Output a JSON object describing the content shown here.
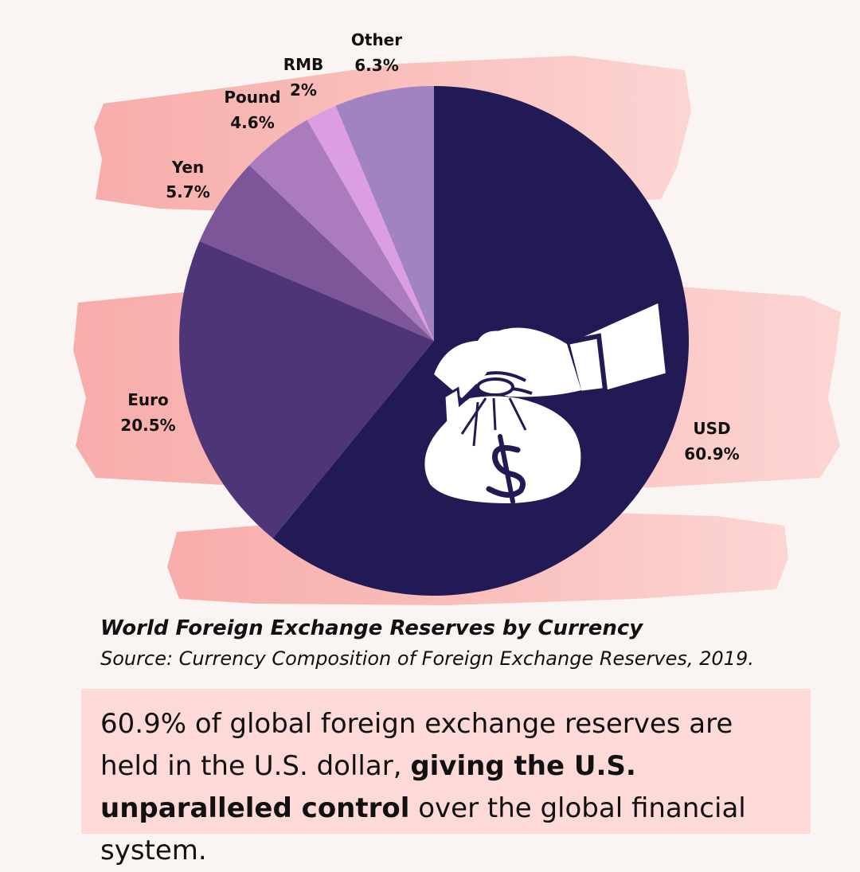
{
  "chart_data": {
    "type": "pie",
    "title": "World Foreign Exchange Reserves by Currency",
    "source": "Source: Currency Composition of Foreign Exchange Reserves, 2019.",
    "start_angle_deg": 0,
    "direction": "clockwise",
    "slices": [
      {
        "name": "USD",
        "label": "60.9%",
        "value": 60.9,
        "color": "#221a55"
      },
      {
        "name": "Euro",
        "label": "20.5%",
        "value": 20.5,
        "color": "#4e3577"
      },
      {
        "name": "Yen",
        "label": "5.7%",
        "value": 5.7,
        "color": "#7c5699"
      },
      {
        "name": "Pound",
        "label": "4.6%",
        "value": 4.6,
        "color": "#ab7cbd"
      },
      {
        "name": "RMB",
        "label": "2%",
        "value": 2.0,
        "color": "#dc9ee2"
      },
      {
        "name": "Other",
        "label": "6.3%",
        "value": 6.3,
        "color": "#a083c0"
      }
    ]
  },
  "callout": {
    "text_before": "60.9% of global foreign exchange reserves are held in the U.S. dollar, ",
    "text_bold": "giving the U.S. unparalleled control",
    "text_after": " over the global financial system."
  },
  "colors": {
    "background": "#faf5f2",
    "brush": "#f8b4b2",
    "callout_bg": "#fddad8"
  },
  "icon": "money-bag-hand-icon"
}
